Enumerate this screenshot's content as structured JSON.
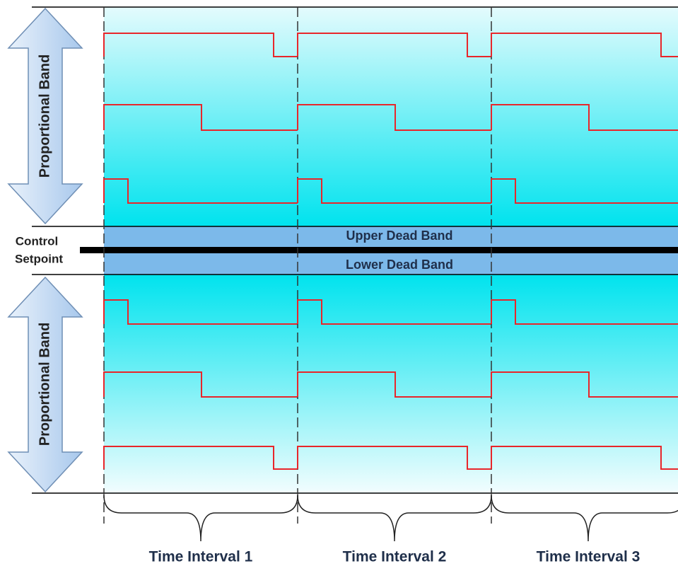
{
  "proportional_bands": [
    "Proportional Band",
    "Proportional Band"
  ],
  "setpoint": {
    "lines": [
      "Control",
      "Setpoint"
    ]
  },
  "dead_bands": [
    "Upper Dead Band",
    "Lower Dead Band"
  ],
  "intervals": [
    "Time Interval 1",
    "Time Interval 2",
    "Time Interval 3"
  ]
}
